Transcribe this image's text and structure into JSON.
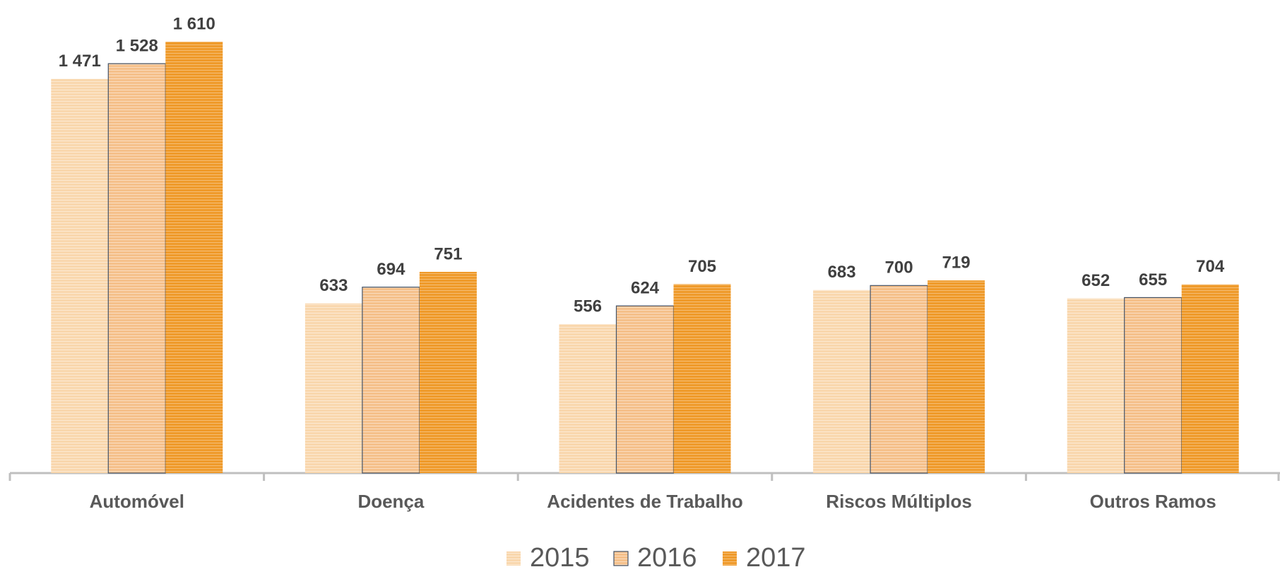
{
  "chart_data": {
    "type": "bar",
    "categories": [
      "Automóvel",
      "Doença",
      "Acidentes de Trabalho",
      "Riscos Múltiplos",
      "Outros Ramos"
    ],
    "series": [
      {
        "name": "2015",
        "color": "#f9d7ad",
        "values": [
          1471,
          633,
          556,
          683,
          652
        ],
        "value_labels": [
          "1 471",
          "633",
          "556",
          "683",
          "652"
        ]
      },
      {
        "name": "2016",
        "color": "#f5c08a",
        "values": [
          1528,
          694,
          624,
          700,
          655
        ],
        "value_labels": [
          "1 528",
          "694",
          "624",
          "700",
          "655"
        ]
      },
      {
        "name": "2017",
        "color": "#ef9a2a",
        "values": [
          1610,
          751,
          705,
          719,
          704
        ],
        "value_labels": [
          "1 610",
          "751",
          "705",
          "719",
          "704"
        ]
      }
    ],
    "legend": "bottom"
  }
}
